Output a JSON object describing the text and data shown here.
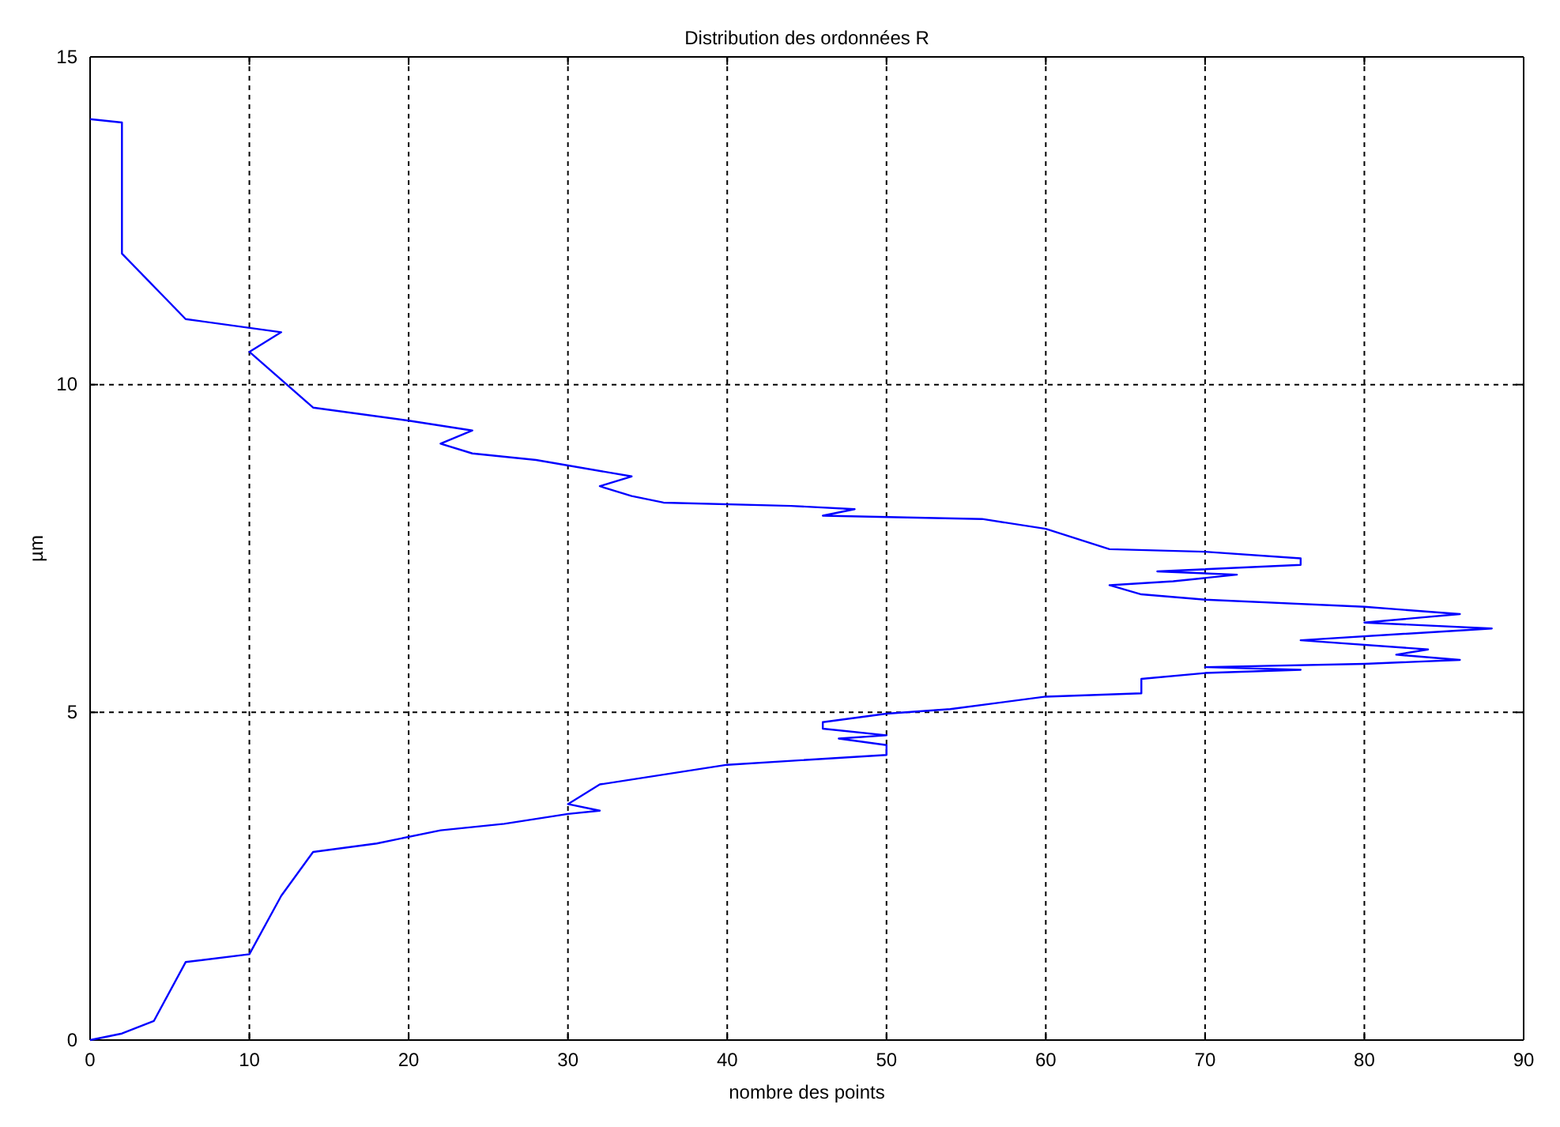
{
  "chart_data": {
    "type": "line",
    "title": "Distribution des ordonnées R",
    "xlabel": "nombre des points",
    "ylabel": "µm",
    "xlim": [
      0,
      90
    ],
    "ylim": [
      0,
      15
    ],
    "xticks": [
      0,
      10,
      20,
      30,
      40,
      50,
      60,
      70,
      80,
      90
    ],
    "yticks": [
      0,
      5,
      10,
      15
    ],
    "grid": true,
    "marker": "none",
    "line_style": "solid",
    "series": [
      {
        "color": "#0000ff",
        "x": [
          0,
          2,
          4,
          6,
          10,
          12,
          14,
          18,
          22,
          26,
          30,
          32,
          30,
          32,
          40,
          50,
          50,
          47,
          50,
          46,
          46,
          50,
          54,
          60,
          66,
          66,
          70,
          76,
          70,
          80,
          86,
          82,
          84,
          76,
          88,
          80,
          86,
          80,
          70,
          66,
          64,
          68,
          72,
          67,
          76,
          76,
          70,
          64,
          60,
          56,
          46,
          48,
          44,
          36,
          34,
          32,
          34,
          28,
          24,
          22,
          24,
          20,
          14,
          10,
          12,
          6,
          2,
          2,
          0
        ],
        "values": [
          0,
          0.1,
          0.29,
          1.19,
          1.31,
          2.2,
          2.87,
          3.0,
          3.2,
          3.3,
          3.45,
          3.5,
          3.6,
          3.9,
          4.2,
          4.35,
          4.5,
          4.6,
          4.65,
          4.75,
          4.85,
          4.98,
          5.05,
          5.24,
          5.29,
          5.51,
          5.6,
          5.65,
          5.69,
          5.74,
          5.8,
          5.88,
          5.96,
          6.1,
          6.28,
          6.37,
          6.5,
          6.61,
          6.72,
          6.8,
          6.94,
          7.0,
          7.1,
          7.15,
          7.25,
          7.35,
          7.45,
          7.49,
          7.8,
          7.95,
          8.0,
          8.1,
          8.15,
          8.2,
          8.3,
          8.45,
          8.6,
          8.85,
          8.95,
          9.1,
          9.3,
          9.45,
          9.65,
          10.5,
          10.8,
          11.0,
          12.0,
          14.0,
          14.05
        ]
      }
    ]
  }
}
